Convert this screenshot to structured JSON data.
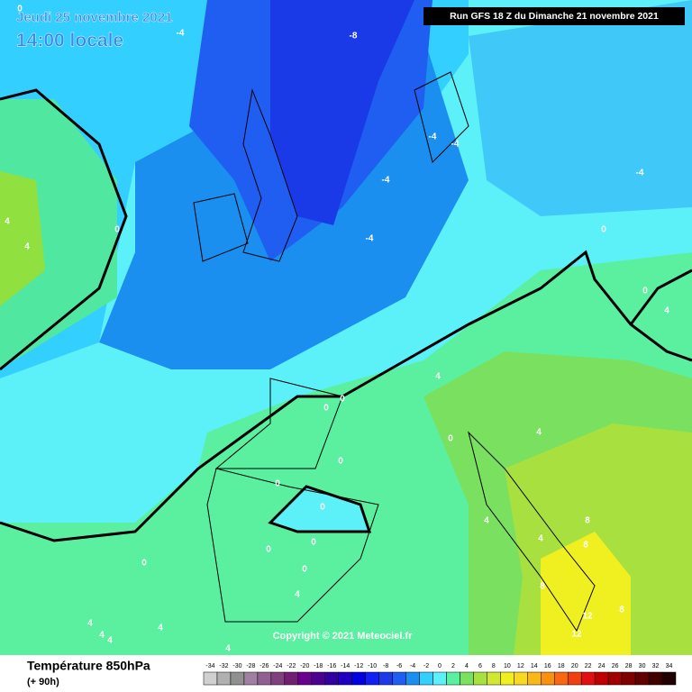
{
  "header": {
    "date": "Jeudi 25 novembre 2021",
    "time": "14:00 locale",
    "run": "Run GFS 18 Z du Dimanche 21 novembre 2021"
  },
  "copyright": "Copyright © 2021 Meteociel.fr",
  "footer": {
    "title": "Température 850hPa",
    "subtitle": "(+ 90h)"
  },
  "contour_labels": [
    "0",
    "-4",
    "-8",
    "-4",
    "-4",
    "-4",
    "-4",
    "0",
    "4",
    "4",
    "-4",
    "0",
    "0",
    "4",
    "4",
    "0",
    "0",
    "4",
    "0",
    "0",
    "0",
    "0",
    "0",
    "0",
    "0",
    "0",
    "4",
    "4",
    "8",
    "8",
    "8",
    "12",
    "12",
    "8",
    "4",
    "4",
    "4",
    "4",
    "4",
    "4"
  ],
  "legend": {
    "ticks": [
      -34,
      -32,
      -30,
      -28,
      -26,
      -24,
      -22,
      -20,
      -18,
      -16,
      -14,
      -12,
      -10,
      -8,
      -6,
      -4,
      -2,
      0,
      2,
      4,
      6,
      8,
      10,
      12,
      14,
      16,
      18,
      20,
      22,
      24,
      26,
      28,
      30,
      32,
      34
    ],
    "colors": [
      "#d0d0d0",
      "#b0b0b0",
      "#909090",
      "#a080a0",
      "#906090",
      "#804080",
      "#702070",
      "#6a0090",
      "#4b0090",
      "#3000a0",
      "#2000c0",
      "#0000e0",
      "#1020f0",
      "#1a3ae8",
      "#1f5ef0",
      "#1a8ff0",
      "#33cfff",
      "#5cf0f8",
      "#5af0a0",
      "#7ae060",
      "#a8e040",
      "#d0e830",
      "#f0f020",
      "#f8d820",
      "#f8b818",
      "#f89010",
      "#f86810",
      "#f04010",
      "#e01010",
      "#c00000",
      "#a00000",
      "#800000",
      "#600000",
      "#400000",
      "#200000"
    ]
  }
}
